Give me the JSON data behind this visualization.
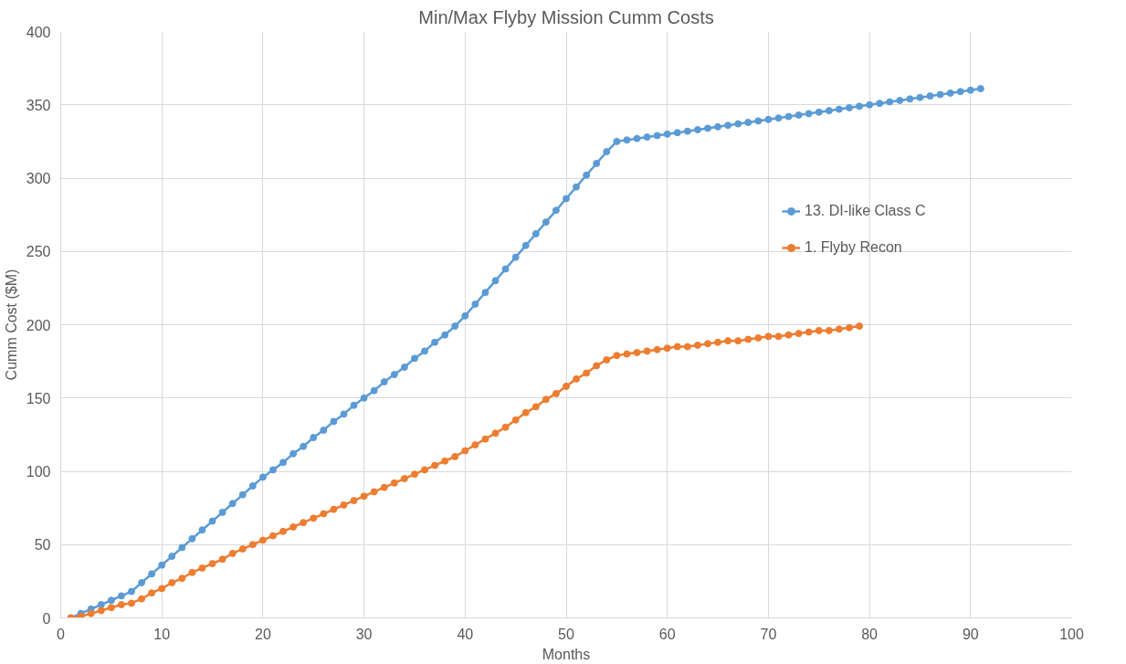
{
  "chart_data": {
    "type": "line",
    "title": "Min/Max Flyby Mission Cumm Costs",
    "xlabel": "Months",
    "ylabel": "Cumm Cost ($M)",
    "xlim": [
      0,
      100
    ],
    "xticks": [
      0,
      10,
      20,
      30,
      40,
      50,
      60,
      70,
      80,
      90,
      100
    ],
    "ylim": [
      0,
      400
    ],
    "yticks": [
      0,
      50,
      100,
      150,
      200,
      250,
      300,
      350,
      400
    ],
    "grid": true,
    "legend": "right",
    "marker": "circle",
    "line_style": "solid",
    "series": [
      {
        "name": "13. DI-like Class C",
        "color": "#5b9bd5",
        "x": [
          1,
          2,
          3,
          4,
          5,
          6,
          7,
          8,
          9,
          10,
          11,
          12,
          13,
          14,
          15,
          16,
          17,
          18,
          19,
          20,
          21,
          22,
          23,
          24,
          25,
          26,
          27,
          28,
          29,
          30,
          31,
          32,
          33,
          34,
          35,
          36,
          37,
          38,
          39,
          40,
          41,
          42,
          43,
          44,
          45,
          46,
          47,
          48,
          49,
          50,
          51,
          52,
          53,
          54,
          55,
          56,
          57,
          58,
          59,
          60,
          61,
          62,
          63,
          64,
          65,
          66,
          67,
          68,
          69,
          70,
          71,
          72,
          73,
          74,
          75,
          76,
          77,
          78,
          79,
          80,
          81,
          82,
          83,
          84,
          85,
          86,
          87,
          88,
          89,
          90,
          91
        ],
        "values": [
          0,
          3,
          6,
          9,
          12,
          15,
          18,
          24,
          30,
          36,
          42,
          48,
          54,
          60,
          66,
          72,
          78,
          84,
          90,
          96,
          101,
          106,
          112,
          117,
          123,
          128,
          134,
          139,
          145,
          150,
          155,
          161,
          166,
          171,
          177,
          182,
          188,
          193,
          199,
          206,
          214,
          222,
          230,
          238,
          246,
          254,
          262,
          270,
          278,
          286,
          294,
          302,
          310,
          318,
          325,
          326,
          327,
          328,
          329,
          330,
          331,
          332,
          333,
          334,
          335,
          336,
          337,
          338,
          339,
          340,
          341,
          342,
          343,
          344,
          345,
          346,
          347,
          348,
          349,
          350,
          351,
          352,
          353,
          354,
          355,
          356,
          357,
          358,
          359,
          360,
          361
        ]
      },
      {
        "name": "1. Flyby Recon",
        "color": "#ed7d31",
        "x": [
          1,
          2,
          3,
          4,
          5,
          6,
          7,
          8,
          9,
          10,
          11,
          12,
          13,
          14,
          15,
          16,
          17,
          18,
          19,
          20,
          21,
          22,
          23,
          24,
          25,
          26,
          27,
          28,
          29,
          30,
          31,
          32,
          33,
          34,
          35,
          36,
          37,
          38,
          39,
          40,
          41,
          42,
          43,
          44,
          45,
          46,
          47,
          48,
          49,
          50,
          51,
          52,
          53,
          54,
          55,
          56,
          57,
          58,
          59,
          60,
          61,
          62,
          63,
          64,
          65,
          66,
          67,
          68,
          69,
          70,
          71,
          72,
          73,
          74,
          75,
          76,
          77,
          78,
          79
        ],
        "values": [
          0,
          1,
          3,
          5,
          7,
          9,
          10,
          13,
          17,
          20,
          24,
          27,
          31,
          34,
          37,
          40,
          44,
          47,
          50,
          53,
          56,
          59,
          62,
          65,
          68,
          71,
          74,
          77,
          80,
          83,
          86,
          89,
          92,
          95,
          98,
          101,
          104,
          107,
          110,
          114,
          118,
          122,
          126,
          130,
          135,
          140,
          144,
          149,
          153,
          158,
          163,
          167,
          172,
          176,
          179,
          180,
          181,
          182,
          183,
          184,
          185,
          185,
          186,
          187,
          188,
          189,
          189,
          190,
          191,
          192,
          192,
          193,
          194,
          195,
          196,
          196,
          197,
          198,
          199
        ]
      }
    ]
  }
}
